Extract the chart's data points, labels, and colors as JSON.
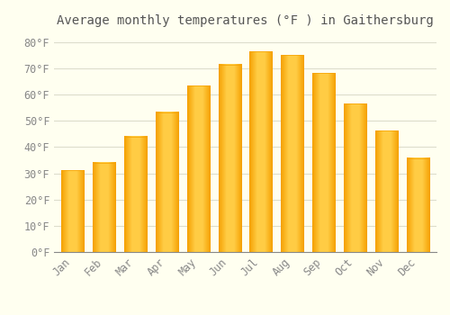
{
  "title": "Average monthly temperatures (°F ) in Gaithersburg",
  "months": [
    "Jan",
    "Feb",
    "Mar",
    "Apr",
    "May",
    "Jun",
    "Jul",
    "Aug",
    "Sep",
    "Oct",
    "Nov",
    "Dec"
  ],
  "values": [
    31.1,
    34.0,
    44.0,
    53.2,
    63.3,
    71.4,
    76.3,
    75.0,
    68.2,
    56.5,
    46.2,
    35.8
  ],
  "bar_color_center": "#FFCC44",
  "bar_color_edge": "#F5A000",
  "background_color": "#FFFFF0",
  "grid_color": "#DDDDCC",
  "text_color": "#888888",
  "title_color": "#555555",
  "ylim": [
    0,
    84
  ],
  "yticks": [
    0,
    10,
    20,
    30,
    40,
    50,
    60,
    70,
    80
  ],
  "title_fontsize": 10,
  "tick_fontsize": 8.5,
  "bar_width": 0.72
}
